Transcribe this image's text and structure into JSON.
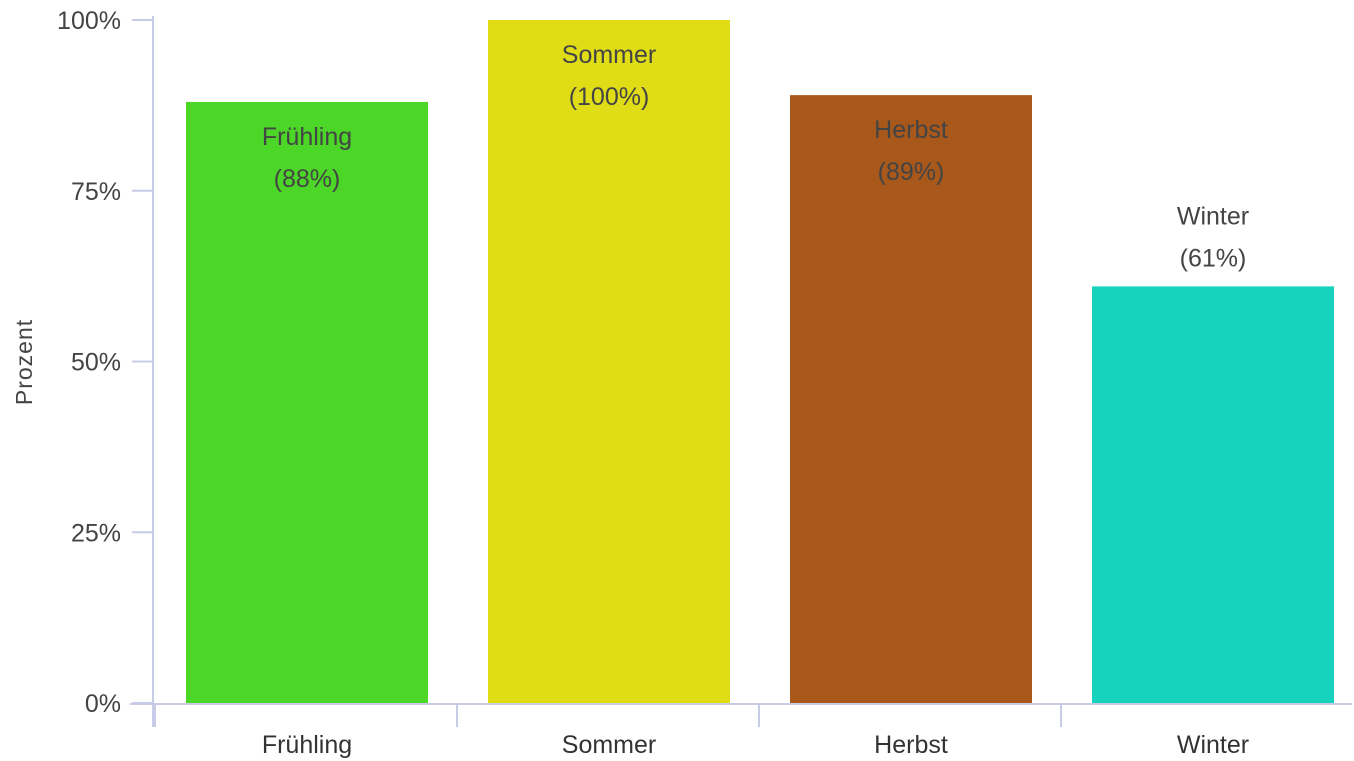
{
  "chart_data": {
    "type": "bar",
    "title": "",
    "xlabel": "",
    "ylabel": "Prozent",
    "categories": [
      "Frühling",
      "Sommer",
      "Herbst",
      "Winter"
    ],
    "values": [
      88,
      100,
      89,
      61
    ],
    "value_labels": [
      "(88%)",
      "(100%)",
      "(89%)",
      "(61%)"
    ],
    "yticks": [
      0,
      25,
      50,
      75,
      100
    ],
    "ytick_labels": [
      "0%",
      "25%",
      "50%",
      "75%",
      "100%"
    ],
    "ylim": [
      0,
      100
    ],
    "grid": false,
    "legend": "none",
    "colors": [
      "#4cd627",
      "#e0dd17",
      "#a8581a",
      "#17d3bd"
    ],
    "axis_color": "#c8cce8"
  }
}
